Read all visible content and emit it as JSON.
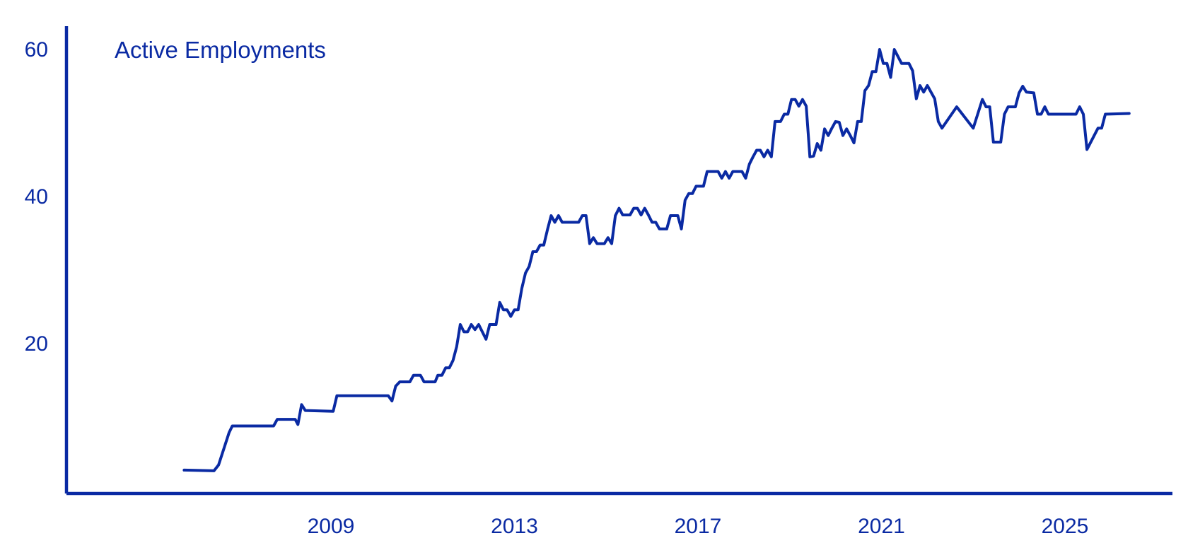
{
  "chart_data": {
    "type": "line",
    "title": "",
    "xlabel": "",
    "ylabel": "",
    "xlim": [
      2004.75,
      2026.2
    ],
    "ylim": [
      0,
      61
    ],
    "x_ticks": [
      {
        "value": 2009,
        "label": "2009"
      },
      {
        "value": 2013,
        "label": "2013"
      },
      {
        "value": 2017,
        "label": "2017"
      },
      {
        "value": 2021,
        "label": "2021"
      },
      {
        "value": 2025,
        "label": "2025"
      }
    ],
    "y_ticks": [
      {
        "value": 20,
        "label": "20"
      },
      {
        "value": 40,
        "label": "40"
      },
      {
        "value": 60,
        "label": "60"
      }
    ],
    "grid": false,
    "color": "#0a2aa3",
    "series": [
      {
        "name": "Active Employments",
        "points": [
          [
            2005.8,
            2.8
          ],
          [
            2006.45,
            2.7
          ],
          [
            2006.55,
            3.5
          ],
          [
            2006.78,
            7.9
          ],
          [
            2006.85,
            8.8
          ],
          [
            2007.75,
            8.8
          ],
          [
            2007.83,
            9.7
          ],
          [
            2008.22,
            9.7
          ],
          [
            2008.28,
            9.0
          ],
          [
            2008.36,
            11.7
          ],
          [
            2008.44,
            10.9
          ],
          [
            2009.05,
            10.8
          ],
          [
            2009.13,
            12.9
          ],
          [
            2010.25,
            12.9
          ],
          [
            2010.33,
            12.2
          ],
          [
            2010.41,
            14.2
          ],
          [
            2010.5,
            14.8
          ],
          [
            2010.72,
            14.8
          ],
          [
            2010.8,
            15.7
          ],
          [
            2010.95,
            15.7
          ],
          [
            2011.03,
            14.8
          ],
          [
            2011.27,
            14.8
          ],
          [
            2011.33,
            15.7
          ],
          [
            2011.42,
            15.7
          ],
          [
            2011.5,
            16.7
          ],
          [
            2011.58,
            16.7
          ],
          [
            2011.66,
            17.7
          ],
          [
            2011.74,
            19.6
          ],
          [
            2011.82,
            22.6
          ],
          [
            2011.9,
            21.6
          ],
          [
            2011.98,
            21.6
          ],
          [
            2012.06,
            22.6
          ],
          [
            2012.14,
            21.9
          ],
          [
            2012.22,
            22.6
          ],
          [
            2012.3,
            21.6
          ],
          [
            2012.38,
            20.6
          ],
          [
            2012.46,
            22.6
          ],
          [
            2012.6,
            22.6
          ],
          [
            2012.68,
            25.6
          ],
          [
            2012.76,
            24.6
          ],
          [
            2012.84,
            24.6
          ],
          [
            2012.92,
            23.7
          ],
          [
            2013.0,
            24.6
          ],
          [
            2013.08,
            24.6
          ],
          [
            2013.16,
            27.5
          ],
          [
            2013.24,
            29.6
          ],
          [
            2013.32,
            30.5
          ],
          [
            2013.4,
            32.5
          ],
          [
            2013.48,
            32.5
          ],
          [
            2013.56,
            33.4
          ],
          [
            2013.64,
            33.4
          ],
          [
            2013.72,
            35.5
          ],
          [
            2013.8,
            37.4
          ],
          [
            2013.88,
            36.5
          ],
          [
            2013.96,
            37.4
          ],
          [
            2014.04,
            36.5
          ],
          [
            2014.4,
            36.5
          ],
          [
            2014.48,
            37.4
          ],
          [
            2014.56,
            37.4
          ],
          [
            2014.64,
            33.6
          ],
          [
            2014.72,
            34.4
          ],
          [
            2014.8,
            33.6
          ],
          [
            2014.96,
            33.6
          ],
          [
            2015.04,
            34.4
          ],
          [
            2015.12,
            33.6
          ],
          [
            2015.2,
            37.4
          ],
          [
            2015.28,
            38.4
          ],
          [
            2015.36,
            37.5
          ],
          [
            2015.52,
            37.5
          ],
          [
            2015.6,
            38.4
          ],
          [
            2015.68,
            38.4
          ],
          [
            2015.76,
            37.5
          ],
          [
            2015.84,
            38.4
          ],
          [
            2015.92,
            37.5
          ],
          [
            2016.0,
            36.5
          ],
          [
            2016.08,
            36.5
          ],
          [
            2016.16,
            35.6
          ],
          [
            2016.32,
            35.6
          ],
          [
            2016.4,
            37.4
          ],
          [
            2016.56,
            37.4
          ],
          [
            2016.64,
            35.6
          ],
          [
            2016.72,
            39.5
          ],
          [
            2016.8,
            40.4
          ],
          [
            2016.88,
            40.4
          ],
          [
            2016.96,
            41.4
          ],
          [
            2017.12,
            41.4
          ],
          [
            2017.2,
            43.4
          ],
          [
            2017.44,
            43.4
          ],
          [
            2017.52,
            42.5
          ],
          [
            2017.6,
            43.4
          ],
          [
            2017.68,
            42.5
          ],
          [
            2017.76,
            43.4
          ],
          [
            2017.96,
            43.4
          ],
          [
            2018.04,
            42.5
          ],
          [
            2018.12,
            44.4
          ],
          [
            2018.2,
            45.4
          ],
          [
            2018.28,
            46.3
          ],
          [
            2018.36,
            46.3
          ],
          [
            2018.44,
            45.4
          ],
          [
            2018.52,
            46.3
          ],
          [
            2018.6,
            45.4
          ],
          [
            2018.68,
            50.2
          ],
          [
            2018.8,
            50.2
          ],
          [
            2018.88,
            51.2
          ],
          [
            2018.96,
            51.2
          ],
          [
            2019.04,
            53.2
          ],
          [
            2019.12,
            53.2
          ],
          [
            2019.2,
            52.3
          ],
          [
            2019.28,
            53.2
          ],
          [
            2019.36,
            52.3
          ],
          [
            2019.44,
            45.4
          ],
          [
            2019.52,
            45.5
          ],
          [
            2019.6,
            47.2
          ],
          [
            2019.68,
            46.3
          ],
          [
            2019.76,
            49.2
          ],
          [
            2019.84,
            48.3
          ],
          [
            2019.92,
            49.3
          ],
          [
            2020.0,
            50.2
          ],
          [
            2020.08,
            50.1
          ],
          [
            2020.16,
            48.3
          ],
          [
            2020.24,
            49.2
          ],
          [
            2020.32,
            48.3
          ],
          [
            2020.4,
            47.3
          ],
          [
            2020.48,
            50.2
          ],
          [
            2020.56,
            50.2
          ],
          [
            2020.64,
            54.4
          ],
          [
            2020.72,
            55.1
          ],
          [
            2020.8,
            57.0
          ],
          [
            2020.88,
            57.0
          ],
          [
            2020.96,
            60.0
          ],
          [
            2021.04,
            58.1
          ],
          [
            2021.12,
            58.1
          ],
          [
            2021.2,
            56.2
          ],
          [
            2021.28,
            60.0
          ],
          [
            2021.44,
            58.1
          ],
          [
            2021.6,
            58.1
          ],
          [
            2021.68,
            57.1
          ],
          [
            2021.76,
            53.3
          ],
          [
            2021.84,
            55.1
          ],
          [
            2021.92,
            54.2
          ],
          [
            2022.0,
            55.1
          ],
          [
            2022.16,
            53.3
          ],
          [
            2022.24,
            50.2
          ],
          [
            2022.32,
            49.3
          ],
          [
            2022.64,
            52.2
          ],
          [
            2023.0,
            49.3
          ],
          [
            2023.2,
            53.2
          ],
          [
            2023.28,
            52.2
          ],
          [
            2023.36,
            52.2
          ],
          [
            2023.44,
            47.4
          ],
          [
            2023.6,
            47.4
          ],
          [
            2023.68,
            51.2
          ],
          [
            2023.76,
            52.2
          ],
          [
            2023.92,
            52.2
          ],
          [
            2024.0,
            54.1
          ],
          [
            2024.08,
            55.0
          ],
          [
            2024.16,
            54.2
          ],
          [
            2024.32,
            54.1
          ],
          [
            2024.4,
            51.2
          ],
          [
            2024.48,
            51.2
          ],
          [
            2024.56,
            52.2
          ],
          [
            2024.64,
            51.2
          ],
          [
            2025.24,
            51.2
          ],
          [
            2025.32,
            52.2
          ],
          [
            2025.4,
            51.2
          ],
          [
            2025.48,
            46.4
          ],
          [
            2025.72,
            49.3
          ],
          [
            2025.8,
            49.3
          ],
          [
            2025.88,
            51.2
          ],
          [
            2026.4,
            51.3
          ]
        ]
      }
    ]
  }
}
